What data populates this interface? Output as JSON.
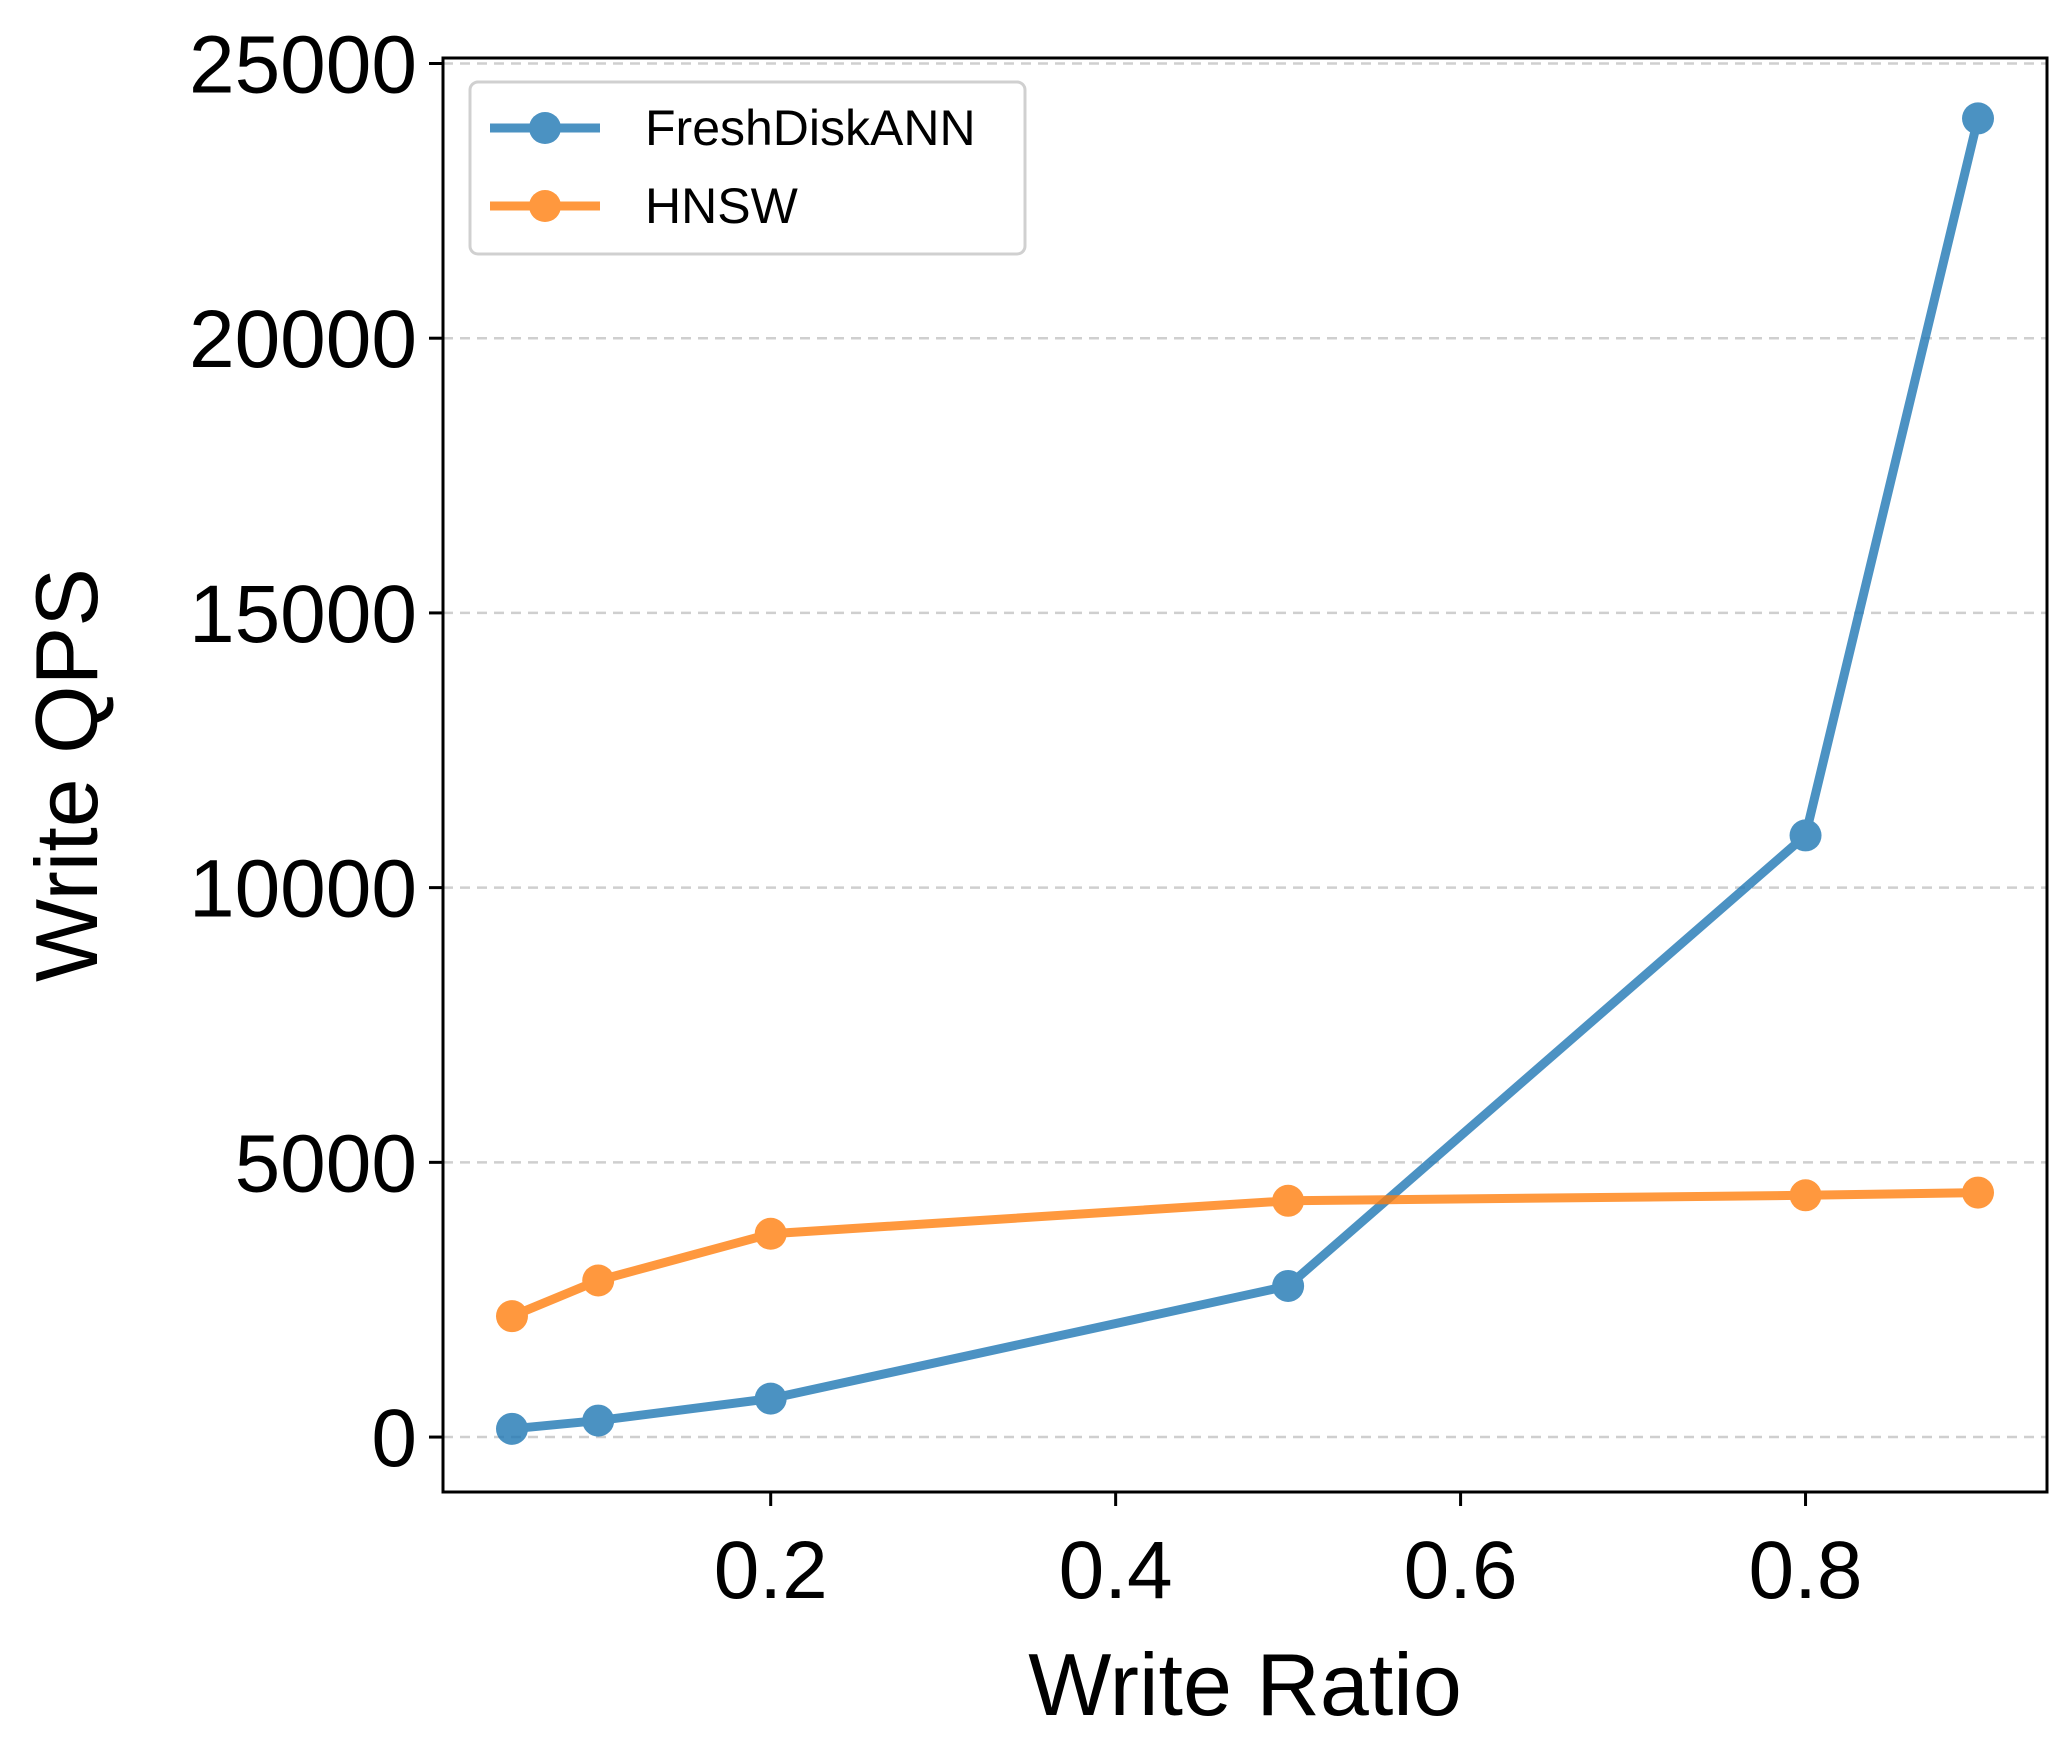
{
  "chart_data": {
    "type": "line",
    "title": "",
    "xlabel": "Write Ratio",
    "ylabel": "Write QPS",
    "xlim": [
      0.01,
      0.94
    ],
    "ylim": [
      -1000,
      25100
    ],
    "x_ticks": [
      0.2,
      0.4,
      0.6,
      0.8
    ],
    "y_ticks": [
      0,
      5000,
      10000,
      15000,
      20000,
      25000
    ],
    "grid": {
      "y": true,
      "x": false,
      "style": "dashed"
    },
    "legend_position": "top-left",
    "series": [
      {
        "name": "FreshDiskANN",
        "color": "#1f77b4",
        "x": [
          0.05,
          0.1,
          0.2,
          0.5,
          0.8,
          0.9
        ],
        "y": [
          150,
          300,
          700,
          2750,
          10950,
          24000
        ]
      },
      {
        "name": "HNSW",
        "color": "#ff7f0e",
        "x": [
          0.05,
          0.1,
          0.2,
          0.5,
          0.8,
          0.9
        ],
        "y": [
          2200,
          2850,
          3700,
          4300,
          4400,
          4450
        ]
      }
    ]
  }
}
